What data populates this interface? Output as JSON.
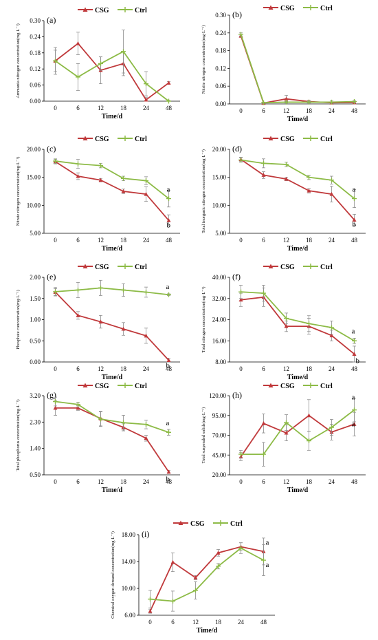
{
  "colors": {
    "CSG": "#c0393b",
    "Ctrl": "#8dbb47",
    "error": "#8c8c8c"
  },
  "legend": [
    "CSG",
    "Ctrl"
  ],
  "chart_data": [
    {
      "type": "line",
      "panel": "(a)",
      "categories": [
        "0",
        "6",
        "12",
        "18",
        "24",
        "48"
      ],
      "xlabel": "Time/d",
      "ylabel": "Ammonia nitrogen concentration(mg·L⁻¹)",
      "ylim": [
        0,
        0.3
      ],
      "yticks": [
        "0.00",
        "0.06",
        "0.12",
        "0.18",
        "0.24",
        "0.30"
      ],
      "series": [
        {
          "name": "CSG",
          "values": [
            0.15,
            0.215,
            0.115,
            0.14,
            0.005,
            0.068
          ],
          "errors": [
            0.05,
            0.042,
            0.05,
            0.045,
            0.01,
            0.005
          ]
        },
        {
          "name": "Ctrl",
          "values": [
            0.15,
            0.09,
            0.14,
            0.185,
            0.065,
            0.0
          ],
          "errors": [
            0.04,
            0.05,
            0.025,
            0.08,
            0.045,
            0.003
          ]
        }
      ],
      "annotations": []
    },
    {
      "type": "line",
      "panel": "(b)",
      "categories": [
        "0",
        "6",
        "12",
        "18",
        "24",
        "48"
      ],
      "xlabel": "Time/d",
      "ylabel": "Nitrite nitrogen concentration(mg·L⁻¹)",
      "ylim": [
        0,
        0.3
      ],
      "yticks": [
        "0.00",
        "0.06",
        "0.12",
        "0.18",
        "0.24",
        "0.30"
      ],
      "series": [
        {
          "name": "CSG",
          "values": [
            0.23,
            0.003,
            0.017,
            0.008,
            0.004,
            0.005
          ],
          "errors": [
            0.005,
            0.002,
            0.012,
            0.004,
            0.003,
            0.003
          ]
        },
        {
          "name": "Ctrl",
          "values": [
            0.235,
            0.004,
            0.006,
            0.006,
            0.006,
            0.008
          ],
          "errors": [
            0.005,
            0.002,
            0.003,
            0.003,
            0.004,
            0.003
          ]
        }
      ],
      "annotations": []
    },
    {
      "type": "line",
      "panel": "(c)",
      "categories": [
        "0",
        "6",
        "12",
        "18",
        "24",
        "48"
      ],
      "xlabel": "Time/d",
      "ylabel": "Nitrate nitrogen concentration(mg·L⁻¹)",
      "ylim": [
        5,
        20
      ],
      "yticks": [
        "5.00",
        "10.00",
        "15.00",
        "20.00"
      ],
      "series": [
        {
          "name": "CSG",
          "values": [
            17.8,
            15.2,
            14.5,
            12.5,
            12.0,
            7.3
          ],
          "errors": [
            0.4,
            0.6,
            0.3,
            0.4,
            1.3,
            1.0
          ]
        },
        {
          "name": "Ctrl",
          "values": [
            17.9,
            17.4,
            17.1,
            14.8,
            14.4,
            11.2
          ],
          "errors": [
            0.4,
            0.8,
            0.4,
            0.4,
            0.7,
            1.5
          ]
        }
      ],
      "annotations": [
        {
          "series": "Ctrl",
          "text": "a"
        },
        {
          "series": "CSG",
          "text": "b"
        }
      ]
    },
    {
      "type": "line",
      "panel": "(d)",
      "categories": [
        "0",
        "6",
        "12",
        "18",
        "24",
        "48"
      ],
      "xlabel": "Time/d",
      "ylabel": "Total inorganic nitrogen concentration(mg·L⁻¹)",
      "ylim": [
        5,
        20
      ],
      "yticks": [
        "5.00",
        "10.00",
        "15.00",
        "20.00"
      ],
      "series": [
        {
          "name": "CSG",
          "values": [
            18.2,
            15.4,
            14.7,
            12.6,
            12.0,
            7.4
          ],
          "errors": [
            0.4,
            0.6,
            0.3,
            0.4,
            1.4,
            1.0
          ]
        },
        {
          "name": "Ctrl",
          "values": [
            18.1,
            17.5,
            17.3,
            15.0,
            14.5,
            11.2
          ],
          "errors": [
            0.4,
            0.8,
            0.4,
            0.4,
            0.7,
            1.6
          ]
        }
      ],
      "annotations": [
        {
          "series": "Ctrl",
          "text": "a"
        },
        {
          "series": "CSG",
          "text": "b"
        }
      ]
    },
    {
      "type": "line",
      "panel": "(e)",
      "categories": [
        "0",
        "6",
        "12",
        "18",
        "24",
        "48"
      ],
      "xlabel": "Time/d",
      "ylabel": "Phosphate concentration(mg·L⁻¹)",
      "ylim": [
        0,
        2.0
      ],
      "yticks": [
        "0.00",
        "0.50",
        "1.00",
        "1.50",
        "2.00"
      ],
      "series": [
        {
          "name": "CSG",
          "values": [
            1.65,
            1.1,
            0.95,
            0.78,
            0.62,
            0.04
          ],
          "errors": [
            0.08,
            0.09,
            0.15,
            0.15,
            0.18,
            0.05
          ]
        },
        {
          "name": "Ctrl",
          "values": [
            1.66,
            1.7,
            1.75,
            1.7,
            1.65,
            1.59
          ],
          "errors": [
            0.1,
            0.18,
            0.18,
            0.15,
            0.12,
            0.02
          ]
        }
      ],
      "annotations": [
        {
          "series": "Ctrl",
          "text": "a"
        },
        {
          "series": "CSG",
          "text": "b"
        }
      ]
    },
    {
      "type": "line",
      "panel": "(f)",
      "categories": [
        "0",
        "6",
        "12",
        "18",
        "24",
        "48"
      ],
      "xlabel": "Time/d",
      "ylabel": "Total nitrogen concentration(mg·L⁻¹)",
      "ylim": [
        8,
        40
      ],
      "yticks": [
        "8.00",
        "16.00",
        "24.00",
        "32.00",
        "40.00"
      ],
      "series": [
        {
          "name": "CSG",
          "values": [
            31.5,
            32.5,
            21.5,
            21.5,
            18.0,
            11.0
          ],
          "errors": [
            2.5,
            3.5,
            2.0,
            3.0,
            2.0,
            3.0
          ]
        },
        {
          "name": "Ctrl",
          "values": [
            34.5,
            34.0,
            24.5,
            22.5,
            21.0,
            16.0
          ],
          "errors": [
            2.5,
            3.0,
            2.0,
            3.0,
            2.5,
            1.0
          ]
        }
      ],
      "annotations": [
        {
          "series": "Ctrl",
          "text": "a"
        },
        {
          "series": "CSG",
          "text": "b"
        }
      ]
    },
    {
      "type": "line",
      "panel": "(g)",
      "categories": [
        "0",
        "6",
        "12",
        "18",
        "24",
        "48"
      ],
      "xlabel": "Time/d",
      "ylabel": "Total phosphorus concentration(mg·L⁻¹)",
      "ylim": [
        0.5,
        3.2
      ],
      "yticks": [
        "0.50",
        "1.40",
        "2.30",
        "3.20"
      ],
      "series": [
        {
          "name": "CSG",
          "values": [
            2.78,
            2.78,
            2.42,
            2.12,
            1.75,
            0.6
          ],
          "errors": [
            0.25,
            0.08,
            0.25,
            0.12,
            0.1,
            0.05
          ]
        },
        {
          "name": "Ctrl",
          "values": [
            3.0,
            2.9,
            2.4,
            2.28,
            2.22,
            1.95
          ],
          "errors": [
            0.15,
            0.08,
            0.25,
            0.25,
            0.15,
            0.1
          ]
        }
      ],
      "annotations": [
        {
          "series": "Ctrl",
          "text": "a"
        },
        {
          "series": "CSG",
          "text": "b"
        }
      ]
    },
    {
      "type": "line",
      "panel": "(h)",
      "categories": [
        "0",
        "6",
        "12",
        "18",
        "24",
        "48"
      ],
      "xlabel": "Time/d",
      "ylabel": "Total suspended solids(mg·L⁻¹)",
      "ylim": [
        20,
        120
      ],
      "yticks": [
        "20.00",
        "45.00",
        "70.00",
        "95.00",
        "120.00"
      ],
      "series": [
        {
          "name": "CSG",
          "values": [
            43.0,
            85.0,
            73.0,
            95.0,
            74.0,
            84.0
          ],
          "errors": [
            5.0,
            12.0,
            10.0,
            20.0,
            10.0,
            15.0
          ]
        },
        {
          "name": "Ctrl",
          "values": [
            46.0,
            46.0,
            86.0,
            63.0,
            80.0,
            102.0
          ],
          "errors": [
            5.0,
            15.0,
            10.0,
            12.0,
            10.0,
            15.0
          ]
        }
      ],
      "annotations": [
        {
          "series": "Ctrl",
          "text": "a"
        },
        {
          "series": "CSG",
          "text": "a"
        }
      ]
    },
    {
      "type": "line",
      "panel": "(i)",
      "categories": [
        "0",
        "6",
        "12",
        "18",
        "24",
        "48"
      ],
      "xlabel": "Time/d",
      "ylabel": "Chemical oxygen demand concentration(mg·L⁻¹)",
      "ylim": [
        6,
        18
      ],
      "yticks": [
        "6.00",
        "10.00",
        "14.00",
        "18.00"
      ],
      "series": [
        {
          "name": "CSG",
          "values": [
            6.6,
            13.9,
            11.6,
            15.3,
            16.2,
            15.5
          ],
          "errors": [
            0.3,
            1.4,
            0.3,
            0.5,
            0.6,
            2.0
          ]
        },
        {
          "name": "Ctrl",
          "values": [
            8.4,
            8.1,
            9.7,
            13.3,
            16.0,
            14.2
          ],
          "errors": [
            1.3,
            1.5,
            1.3,
            0.4,
            0.8,
            2.3
          ]
        }
      ],
      "annotations": [
        {
          "series": "CSG",
          "text": "a"
        },
        {
          "series": "Ctrl",
          "text": "a"
        }
      ]
    }
  ]
}
